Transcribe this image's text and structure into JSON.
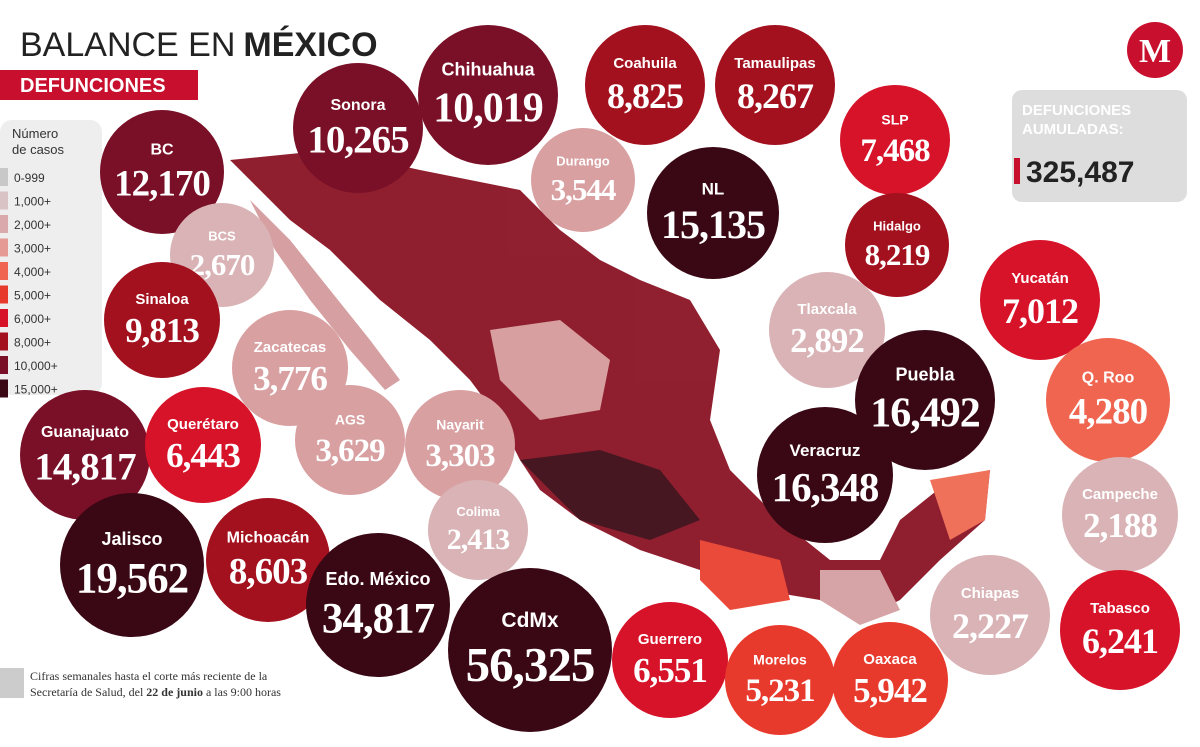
{
  "header": {
    "title_light": "BALANCE EN",
    "title_bold": "MÉXICO",
    "subtitle": "DEFUNCIONES",
    "logo": "M"
  },
  "legend": {
    "title_line1": "Número",
    "title_line2": "de casos",
    "items": [
      {
        "label": "0-999",
        "color": "#c8c8c8"
      },
      {
        "label": "1,000+",
        "color": "#d9c3c4"
      },
      {
        "label": "2,000+",
        "color": "#d9a9ab"
      },
      {
        "label": "3,000+",
        "color": "#e59a96"
      },
      {
        "label": "4,000+",
        "color": "#f0654f"
      },
      {
        "label": "5,000+",
        "color": "#e83a2c"
      },
      {
        "label": "6,000+",
        "color": "#d7132a"
      },
      {
        "label": "8,000+",
        "color": "#a3111f"
      },
      {
        "label": "10,000+",
        "color": "#7a1027"
      },
      {
        "label": "15,000+",
        "color": "#3a0814"
      }
    ]
  },
  "states": [
    {
      "name": "BC",
      "value": "12,170",
      "color": "#7a1027"
    },
    {
      "name": "Sonora",
      "value": "10,265",
      "color": "#7a1027"
    },
    {
      "name": "Chihuahua",
      "value": "10,019",
      "color": "#7a1027"
    },
    {
      "name": "Coahuila",
      "value": "8,825",
      "color": "#a3111f"
    },
    {
      "name": "Tamaulipas",
      "value": "8,267",
      "color": "#a3111f"
    },
    {
      "name": "SLP",
      "value": "7,468",
      "color": "#d7132a"
    },
    {
      "name": "Durango",
      "value": "3,544",
      "color": "#d9a0a2"
    },
    {
      "name": "NL",
      "value": "15,135",
      "color": "#3a0814"
    },
    {
      "name": "BCS",
      "value": "2,670",
      "color": "#d9b3b5"
    },
    {
      "name": "Hidalgo",
      "value": "8,219",
      "color": "#a3111f"
    },
    {
      "name": "Yucatán",
      "value": "7,012",
      "color": "#d7132a"
    },
    {
      "name": "Sinaloa",
      "value": "9,813",
      "color": "#a3111f"
    },
    {
      "name": "Tlaxcala",
      "value": "2,892",
      "color": "#d9b3b5"
    },
    {
      "name": "Zacatecas",
      "value": "3,776",
      "color": "#d9a0a2"
    },
    {
      "name": "Puebla",
      "value": "16,492",
      "color": "#3a0814"
    },
    {
      "name": "Q. Roo",
      "value": "4,280",
      "color": "#f0654f"
    },
    {
      "name": "Guanajuato",
      "value": "14,817",
      "color": "#7a1027"
    },
    {
      "name": "Querétaro",
      "value": "6,443",
      "color": "#d7132a"
    },
    {
      "name": "AGS",
      "value": "3,629",
      "color": "#d9a0a2"
    },
    {
      "name": "Nayarit",
      "value": "3,303",
      "color": "#d9a0a2"
    },
    {
      "name": "Veracruz",
      "value": "16,348",
      "color": "#3a0814"
    },
    {
      "name": "Campeche",
      "value": "2,188",
      "color": "#d9b3b5"
    },
    {
      "name": "Colima",
      "value": "2,413",
      "color": "#d9b3b5"
    },
    {
      "name": "Jalisco",
      "value": "19,562",
      "color": "#3a0814"
    },
    {
      "name": "Michoacán",
      "value": "8,603",
      "color": "#a3111f"
    },
    {
      "name": "Edo. México",
      "value": "34,817",
      "color": "#3a0814"
    },
    {
      "name": "CdMx",
      "value": "56,325",
      "color": "#3a0814"
    },
    {
      "name": "Chiapas",
      "value": "2,227",
      "color": "#d9b3b5"
    },
    {
      "name": "Tabasco",
      "value": "6,241",
      "color": "#d7132a"
    },
    {
      "name": "Guerrero",
      "value": "6,551",
      "color": "#d7132a"
    },
    {
      "name": "Morelos",
      "value": "5,231",
      "color": "#e83a2c"
    },
    {
      "name": "Oaxaca",
      "value": "5,942",
      "color": "#e83a2c"
    }
  ],
  "total": {
    "label_line1": "DEFUNCIONES",
    "label_line2": "AUMULADAS:",
    "value": "325,487"
  },
  "footnote": {
    "line1": "Cifras semanales hasta el corte más reciente de la",
    "line2_a": "Secretaría de Salud, del",
    "line2_b": "22 de junio",
    "line2_c": "a las 9:00 horas"
  }
}
